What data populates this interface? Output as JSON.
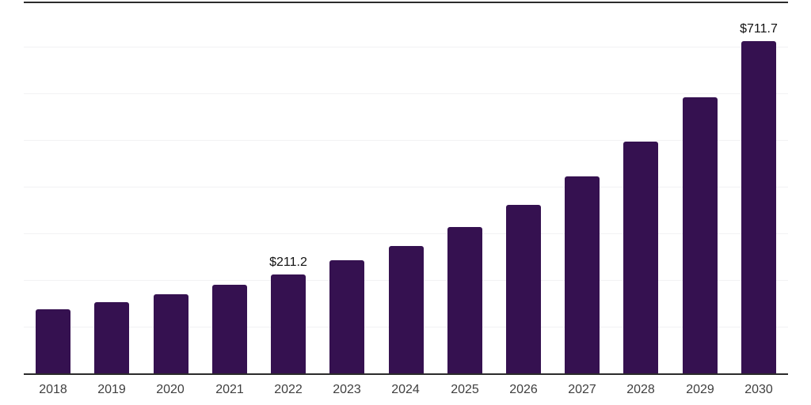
{
  "chart_data": {
    "type": "bar",
    "title": "",
    "xlabel": "",
    "ylabel": "",
    "categories": [
      "2018",
      "2019",
      "2020",
      "2021",
      "2022",
      "2023",
      "2024",
      "2025",
      "2026",
      "2027",
      "2028",
      "2029",
      "2030"
    ],
    "values": [
      137.4,
      152.6,
      169.6,
      189.9,
      211.2,
      242.5,
      273.0,
      313.7,
      361.2,
      422.2,
      496.8,
      591.8,
      711.7
    ],
    "data_labels": [
      {
        "category": "2022",
        "text": "$211.2"
      },
      {
        "category": "2030",
        "text": "$711.7"
      }
    ],
    "ylim": [
      0,
      800
    ],
    "grid_step": 100,
    "grid": "horizontal-only",
    "legend": "none",
    "colors": {
      "bar": "#351150",
      "axis": "#2b2b2b",
      "gridline": "#f2f2f4",
      "tick_label": "#3f3f3f",
      "value_label": "#111111",
      "background": "#ffffff"
    }
  }
}
